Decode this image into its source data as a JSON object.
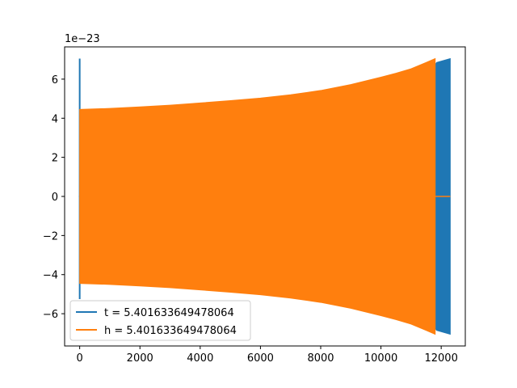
{
  "chart_data": {
    "type": "area",
    "title": "",
    "xlabel": "",
    "ylabel": "",
    "xlim": [
      -500,
      12800
    ],
    "ylim": [
      -7.65,
      7.65
    ],
    "x_ticks": [
      0,
      2000,
      4000,
      6000,
      8000,
      10000,
      12000
    ],
    "x_tick_labels": [
      "0",
      "2000",
      "4000",
      "6000",
      "8000",
      "10000",
      "12000"
    ],
    "y_ticks": [
      -6,
      -4,
      -2,
      0,
      2,
      4,
      6
    ],
    "y_tick_labels": [
      "−6",
      "−4",
      "−2",
      "0",
      "2",
      "4",
      "6"
    ],
    "y_offset_text": "1e−23",
    "legend_position": "lower-left",
    "grid": false,
    "series": [
      {
        "name": "t = 5.401633649478064",
        "color": "#1f77b4",
        "spike": {
          "x": 0,
          "ymin": -5.25,
          "ymax": 7.05
        },
        "envelope": {
          "x": [
            0,
            11800,
            11850,
            12300
          ],
          "upper": [
            0,
            6.75,
            6.85,
            7.05
          ],
          "lower": [
            0,
            -6.75,
            -6.85,
            -7.05
          ]
        }
      },
      {
        "name": "h = 5.401633649478064",
        "color": "#ff7f0e",
        "envelope": {
          "x": [
            0,
            1000,
            2000,
            3000,
            4000,
            5000,
            6000,
            7000,
            8000,
            9000,
            10000,
            10500,
            11000,
            11500,
            11800
          ],
          "upper": [
            4.45,
            4.5,
            4.58,
            4.67,
            4.78,
            4.9,
            5.03,
            5.2,
            5.42,
            5.72,
            6.1,
            6.3,
            6.53,
            6.85,
            7.05
          ],
          "lower": [
            -4.45,
            -4.5,
            -4.58,
            -4.67,
            -4.78,
            -4.9,
            -5.03,
            -5.2,
            -5.42,
            -5.72,
            -6.1,
            -6.3,
            -6.53,
            -6.85,
            -7.05
          ]
        },
        "tail": {
          "x": [
            11800,
            12300
          ],
          "y": [
            0,
            0
          ]
        }
      }
    ]
  }
}
